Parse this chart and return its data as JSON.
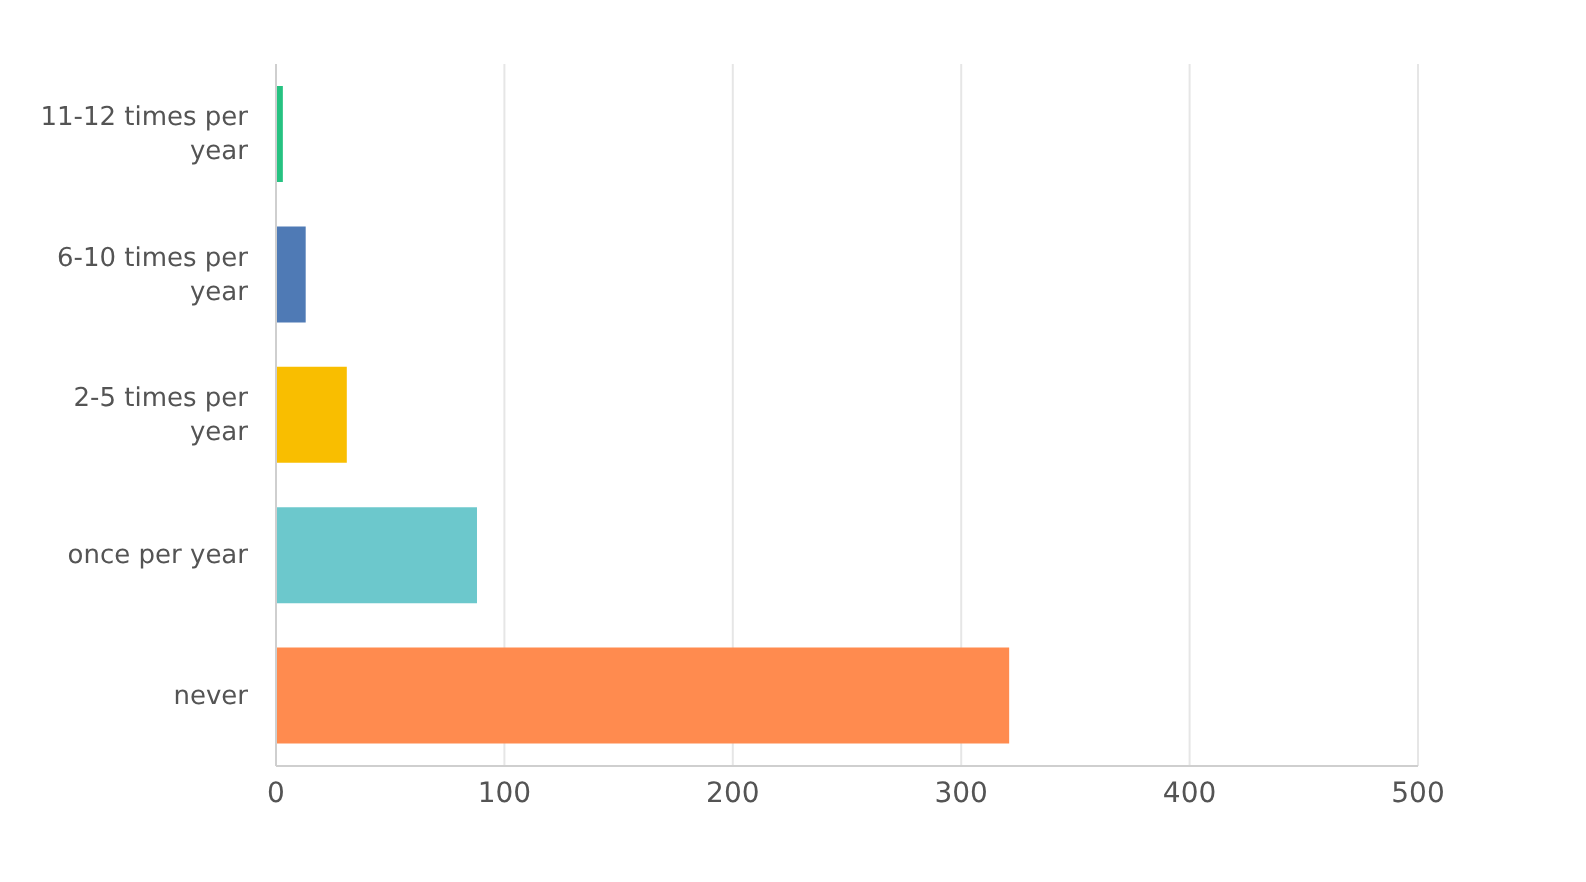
{
  "chart_data": {
    "type": "bar",
    "orientation": "horizontal",
    "categories": [
      "11-12 times per year",
      "6-10 times per year",
      "2-5 times per year",
      "once per year",
      "never"
    ],
    "values": [
      3,
      13,
      31,
      88,
      321
    ],
    "colors": [
      "#26c281",
      "#4f7ab5",
      "#f9be00",
      "#6cc8cc",
      "#ff8b4f"
    ],
    "xlim": [
      0,
      500
    ],
    "xticks": [
      0,
      100,
      200,
      300,
      400,
      500
    ],
    "grid": "x"
  }
}
